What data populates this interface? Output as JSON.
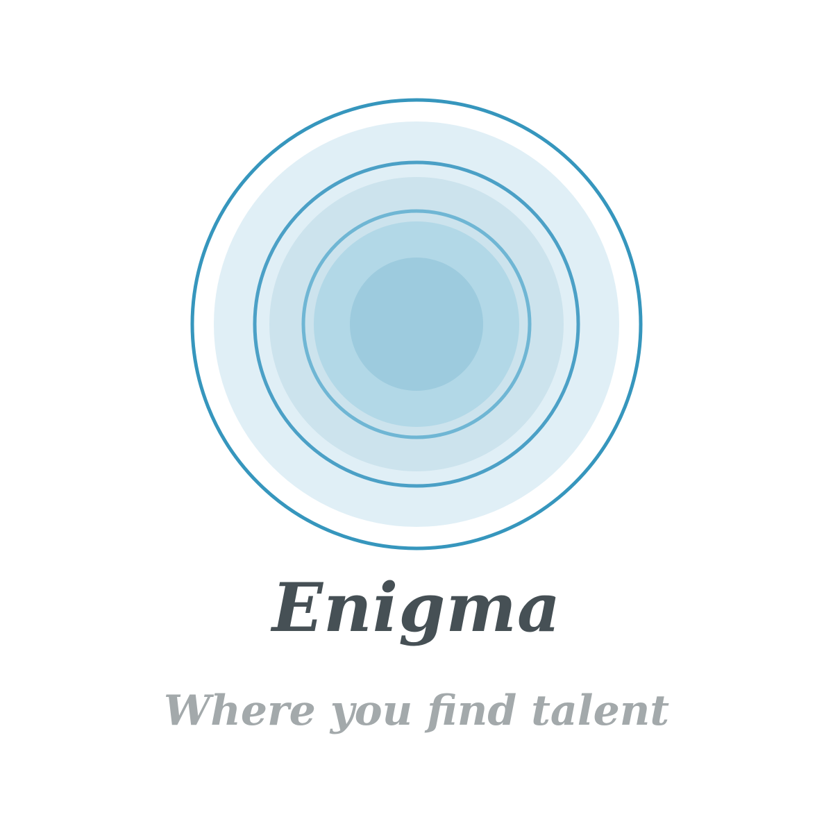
{
  "logo": {
    "brand_name": "Enigma",
    "tagline": "Where you find talent",
    "colors": {
      "background": "#ffffff",
      "outer_ring": "#3696bd",
      "middle_ring": "#4ba0c6",
      "inner_ring": "#6fb6d4",
      "disc_outer": "#e0eff6",
      "disc_middle": "#cce3ed",
      "disc_inner": "#b2d8e7",
      "core": "#9dcbde",
      "brand_text": "#465055",
      "tagline_text": "#a3a9ab"
    },
    "emblem_icon": "concentric-ripple-rings-icon"
  }
}
